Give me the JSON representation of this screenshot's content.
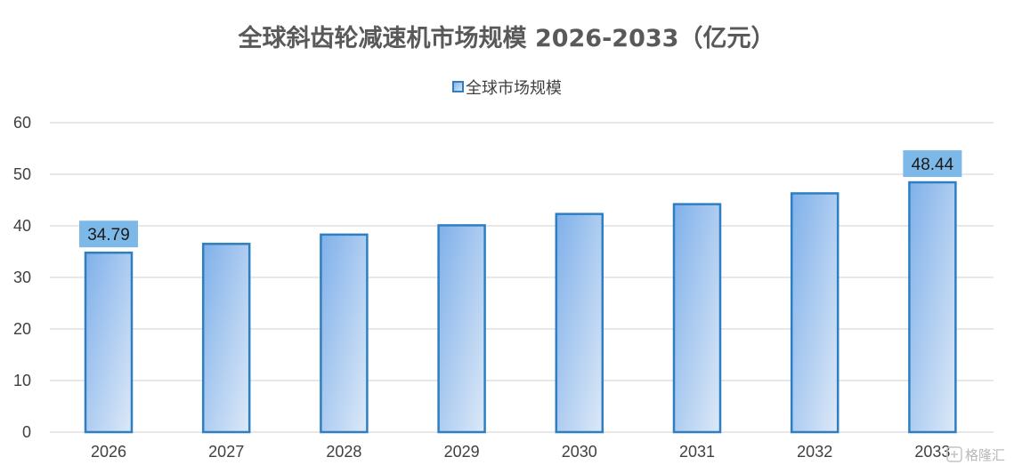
{
  "chart_data": {
    "type": "bar",
    "title": "全球斜齿轮减速机市场规模 2026-2033（亿元）",
    "xlabel": "",
    "ylabel": "",
    "categories": [
      "2026",
      "2027",
      "2028",
      "2029",
      "2030",
      "2031",
      "2032",
      "2033"
    ],
    "series": [
      {
        "name": "全球市场规模",
        "values": [
          34.79,
          36.5,
          38.3,
          40.1,
          42.3,
          44.2,
          46.3,
          48.44
        ],
        "data_labels": [
          "34.79",
          "",
          "",
          "",
          "",
          "",
          "",
          "48.44"
        ]
      }
    ],
    "ylim": [
      0,
      60
    ],
    "yticks": [
      0,
      10,
      20,
      30,
      40,
      50,
      60
    ],
    "grid": true,
    "legend_position": "top-center",
    "colors": {
      "bar_fill_start": "#7fb0ea",
      "bar_fill_end": "#dde9f7",
      "bar_border": "#2e7fc2",
      "label_background": "#7db9e8",
      "gridline": "#d9d9d9",
      "axis_text": "#404040",
      "title_text": "#595959"
    }
  },
  "watermark": {
    "text": "格隆汇",
    "icon": "glh-logo-icon"
  }
}
